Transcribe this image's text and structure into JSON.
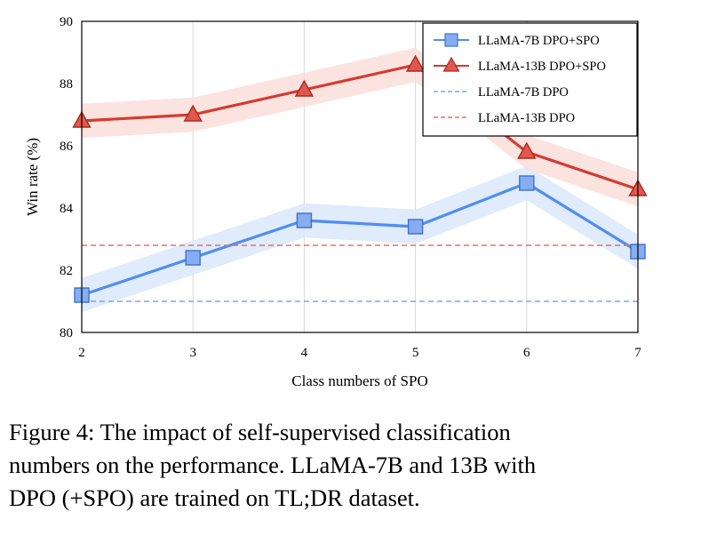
{
  "chart_data": {
    "type": "line",
    "x": [
      2,
      3,
      4,
      5,
      6,
      7
    ],
    "xlabel": "Class numbers of SPO",
    "ylabel": "Win rate (%)",
    "xlim": [
      2,
      7
    ],
    "ylim": [
      80,
      90
    ],
    "xticks": [
      "2",
      "3",
      "4",
      "5",
      "6",
      "7"
    ],
    "yticks": [
      "80",
      "82",
      "84",
      "86",
      "88",
      "90"
    ],
    "grid": "vertical",
    "legend_position": "top-right",
    "series": [
      {
        "name": "LLaMA-7B DPO+SPO",
        "values": [
          81.2,
          82.4,
          83.6,
          83.4,
          84.8,
          82.6
        ],
        "band": 0.55,
        "color": "#4f8ef0",
        "band_color": "#dbe8fa",
        "marker": "square",
        "style": "solid"
      },
      {
        "name": "LLaMA-13B DPO+SPO",
        "values": [
          86.8,
          87.0,
          87.8,
          88.6,
          85.8,
          84.6
        ],
        "band": 0.55,
        "color": "#d63a2f",
        "band_color": "#fadedb",
        "marker": "triangle",
        "style": "solid"
      },
      {
        "name": "LLaMA-7B DPO",
        "values": [
          81.0,
          81.0,
          81.0,
          81.0,
          81.0,
          81.0
        ],
        "color": "#7da5f3",
        "style": "dashed"
      },
      {
        "name": "LLaMA-13B DPO",
        "values": [
          82.8,
          82.8,
          82.8,
          82.8,
          82.8,
          82.8
        ],
        "color": "#e3706a",
        "style": "dashed"
      }
    ]
  },
  "caption": {
    "line1": "Figure 4: The impact of self-supervised classification",
    "line2": "numbers on the performance. LLaMA-7B and 13B with",
    "line3": "DPO (+SPO) are trained on TL;DR dataset."
  }
}
